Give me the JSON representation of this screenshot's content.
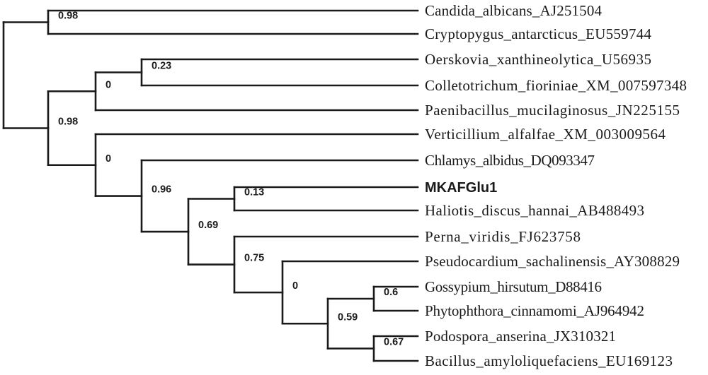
{
  "tree": {
    "leaves": [
      {
        "label": "Candida_albicans_AJ251504"
      },
      {
        "label": "Cryptopygus_antarcticus_EU559744"
      },
      {
        "label": "Oerskovia_xanthineolytica_U56935"
      },
      {
        "label": "Colletotrichum_fioriniae_XM_007597348"
      },
      {
        "label": "Paenibacillus_mucilaginosus_JN225155"
      },
      {
        "label": "Verticillium_alfalfae_XM_003009564"
      },
      {
        "label": "Chlamys_albidus_DQ093347"
      },
      {
        "label": "MKAFGlu1",
        "emphasis": true
      },
      {
        "label": "Haliotis_discus_hannai_AB488493"
      },
      {
        "label": "Perna_viridis_FJ623758"
      },
      {
        "label": "Pseudocardium_sachalinensis_AY308829"
      },
      {
        "label": "Gossypium_hirsutum_D88416"
      },
      {
        "label": "Phytophthora_cinnamomi_AJ964942"
      },
      {
        "label": "Podospora_anserina_JX310321"
      },
      {
        "label": "Bacillus_amyloliquefaciens_EU169123"
      }
    ],
    "nodes": [
      {
        "id": "n_root",
        "support": "",
        "children": [
          "n_a",
          "n_b"
        ]
      },
      {
        "id": "n_a",
        "support": "0.98",
        "children": [
          "L0",
          "L1"
        ]
      },
      {
        "id": "n_b",
        "support": "0.98",
        "children": [
          "n_c",
          "n_d"
        ]
      },
      {
        "id": "n_c",
        "support": "0",
        "children": [
          "n_e",
          "L4"
        ]
      },
      {
        "id": "n_e",
        "support": "0.23",
        "children": [
          "L2",
          "L3"
        ]
      },
      {
        "id": "n_d",
        "support": "0",
        "children": [
          "L5",
          "n_f"
        ]
      },
      {
        "id": "n_f",
        "support": "0.96",
        "children": [
          "L6",
          "n_g"
        ]
      },
      {
        "id": "n_g",
        "support": "0.69",
        "children": [
          "n_h",
          "n_i"
        ]
      },
      {
        "id": "n_h",
        "support": "0.13",
        "children": [
          "L7",
          "L8"
        ]
      },
      {
        "id": "n_i",
        "support": "0.75",
        "children": [
          "L9",
          "n_j"
        ]
      },
      {
        "id": "n_j",
        "support": "0",
        "children": [
          "L10",
          "n_k"
        ]
      },
      {
        "id": "n_k",
        "support": "0.59",
        "children": [
          "n_l",
          "n_m"
        ]
      },
      {
        "id": "n_l",
        "support": "0.6",
        "children": [
          "L11",
          "L12"
        ]
      },
      {
        "id": "n_m",
        "support": "0.67",
        "children": [
          "L13",
          "L14"
        ]
      }
    ]
  }
}
